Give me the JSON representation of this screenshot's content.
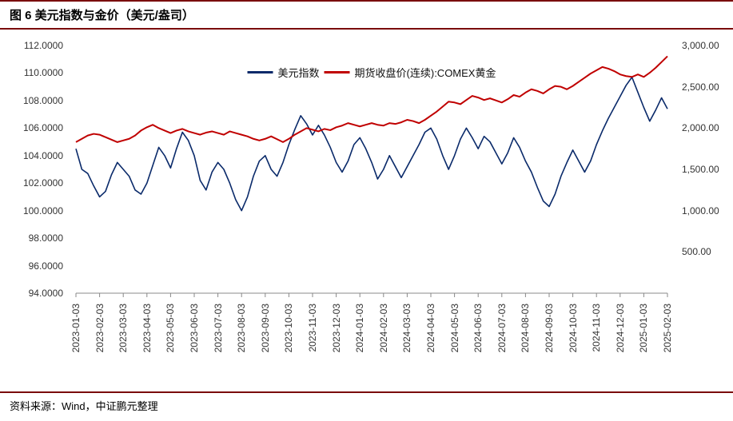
{
  "title": "图 6 美元指数与金价（美元/盎司）",
  "source": "资料来源：Wind，中证鹏元整理",
  "chart": {
    "type": "line-dual-axis",
    "background_color": "#ffffff",
    "border_color": "#7a0c0c",
    "axis_color": "#888888",
    "label_color": "#333333",
    "label_fontsize": 12,
    "title_fontsize": 15,
    "legend": {
      "items": [
        {
          "label": "美元指数",
          "color": "#0a2a6a"
        },
        {
          "label": "期货收盘价(连续):COMEX黄金",
          "color": "#c00000"
        }
      ],
      "position": "top-center"
    },
    "x": {
      "ticks": [
        "2023-01-03",
        "2023-02-03",
        "2023-03-03",
        "2023-04-03",
        "2023-05-03",
        "2023-06-03",
        "2023-07-03",
        "2023-08-03",
        "2023-09-03",
        "2023-10-03",
        "2023-11-03",
        "2023-12-03",
        "2024-01-03",
        "2024-02-03",
        "2024-03-03",
        "2024-04-03",
        "2024-05-03",
        "2024-06-03",
        "2024-07-03",
        "2024-08-03",
        "2024-09-03",
        "2024-10-03",
        "2024-11-03",
        "2024-12-03",
        "2025-01-03",
        "2025-02-03"
      ],
      "rotate": -90
    },
    "y_left": {
      "label": "",
      "min": 94.0,
      "max": 112.0,
      "ticks": [
        94.0,
        96.0,
        98.0,
        100.0,
        102.0,
        104.0,
        106.0,
        108.0,
        110.0,
        112.0
      ],
      "tick_format": "0.0000"
    },
    "y_right": {
      "label": "",
      "min": 0.0,
      "max": 3000.0,
      "ticks": [
        500.0,
        1000.0,
        1500.0,
        2000.0,
        2500.0,
        3000.0
      ],
      "tick_format": "0.00"
    },
    "series": [
      {
        "name": "美元指数",
        "axis": "left",
        "color": "#0a2a6a",
        "line_width": 1.6,
        "data": [
          104.5,
          103.0,
          102.7,
          101.8,
          101.0,
          101.4,
          102.6,
          103.5,
          103.0,
          102.5,
          101.5,
          101.2,
          102.0,
          103.3,
          104.6,
          104.0,
          103.1,
          104.5,
          105.7,
          105.1,
          104.0,
          102.2,
          101.5,
          102.8,
          103.5,
          103.0,
          102.0,
          100.8,
          100.0,
          101.0,
          102.5,
          103.6,
          104.0,
          103.0,
          102.5,
          103.5,
          104.8,
          105.9,
          106.9,
          106.3,
          105.5,
          106.2,
          105.5,
          104.6,
          103.5,
          102.8,
          103.6,
          104.8,
          105.3,
          104.5,
          103.5,
          102.3,
          103.0,
          104.0,
          103.2,
          102.4,
          103.2,
          104.0,
          104.8,
          105.7,
          106.0,
          105.2,
          104.0,
          103.0,
          104.0,
          105.2,
          106.0,
          105.3,
          104.5,
          105.4,
          105.0,
          104.2,
          103.4,
          104.2,
          105.3,
          104.6,
          103.6,
          102.8,
          101.7,
          100.7,
          100.3,
          101.2,
          102.5,
          103.5,
          104.4,
          103.6,
          102.8,
          103.6,
          104.8,
          105.8,
          106.7,
          107.5,
          108.3,
          109.1,
          109.7,
          108.6,
          107.5,
          106.5,
          107.3,
          108.2,
          107.4
        ]
      },
      {
        "name": "期货收盘价(连续):COMEX黄金",
        "axis": "right",
        "color": "#c00000",
        "line_width": 2.0,
        "data": [
          1830,
          1870,
          1910,
          1930,
          1920,
          1890,
          1860,
          1830,
          1850,
          1870,
          1910,
          1970,
          2010,
          2040,
          2000,
          1970,
          1940,
          1970,
          1990,
          1960,
          1940,
          1920,
          1945,
          1960,
          1940,
          1920,
          1960,
          1940,
          1920,
          1900,
          1870,
          1850,
          1870,
          1900,
          1865,
          1830,
          1870,
          1920,
          1960,
          2000,
          1980,
          1960,
          1990,
          1975,
          2010,
          2030,
          2060,
          2040,
          2020,
          2040,
          2060,
          2040,
          2030,
          2060,
          2050,
          2070,
          2100,
          2085,
          2060,
          2100,
          2150,
          2200,
          2260,
          2320,
          2310,
          2290,
          2340,
          2390,
          2370,
          2340,
          2360,
          2335,
          2310,
          2350,
          2400,
          2380,
          2430,
          2470,
          2450,
          2420,
          2470,
          2510,
          2500,
          2470,
          2510,
          2560,
          2610,
          2660,
          2700,
          2740,
          2720,
          2690,
          2650,
          2630,
          2620,
          2650,
          2620,
          2670,
          2730,
          2800,
          2870
        ]
      }
    ]
  }
}
